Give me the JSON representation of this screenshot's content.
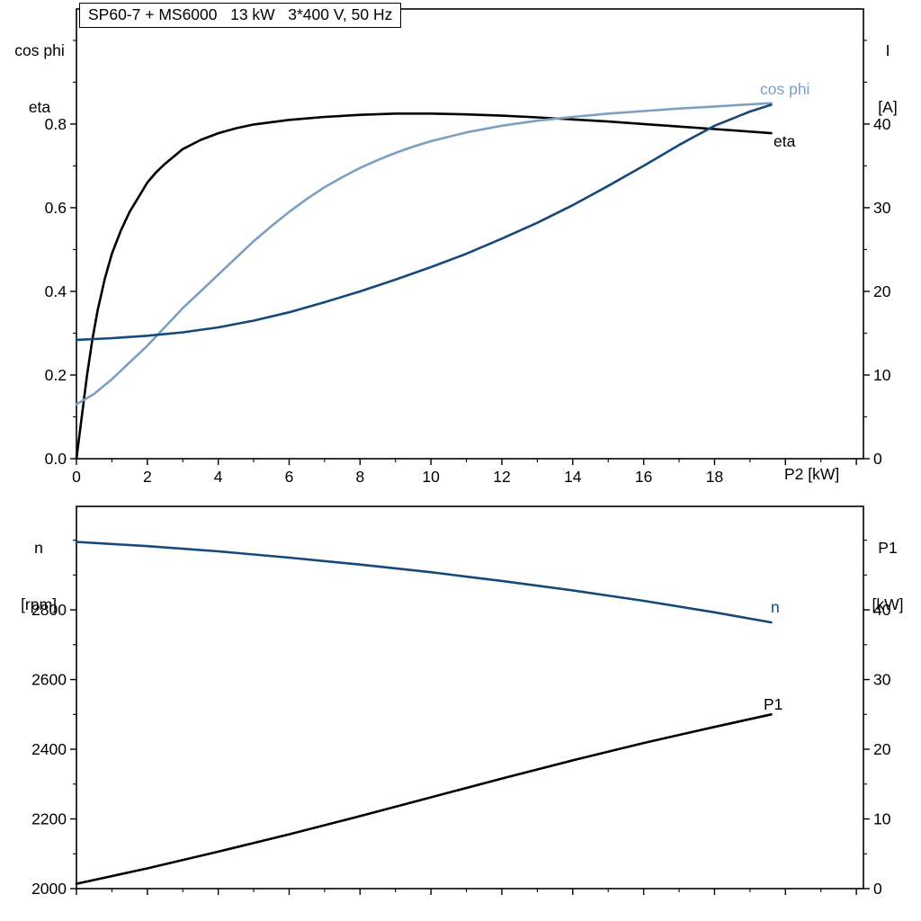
{
  "title": "SP60-7 + MS6000   13 kW   3*400 V, 50 Hz",
  "colors": {
    "black": "#000000",
    "dark_blue": "#15497b",
    "light_blue": "#7d9fc2"
  },
  "top_chart": {
    "y_left_title": [
      "cos phi",
      "eta"
    ],
    "y_right_title": [
      "I",
      "[A]"
    ],
    "x_title": "P2 [kW]",
    "curve_labels": {
      "cos_phi": "cos phi",
      "eta": "eta"
    }
  },
  "bottom_chart": {
    "y_left_title": [
      "n",
      "[rpm]"
    ],
    "y_right_title": [
      "P1",
      "[kW]"
    ],
    "curve_labels": {
      "n": "n",
      "p1": "P1"
    }
  },
  "chart_data": [
    {
      "id": "top",
      "type": "line",
      "title": "SP60-7 + MS6000   13 kW   3*400 V, 50 Hz",
      "xlabel": "P2 [kW]",
      "ylabel_left": "cos phi / eta",
      "ylabel_right": "I [A]",
      "xlim": [
        0,
        22.2
      ],
      "ylim_left": [
        0,
        1.075
      ],
      "ylim_right": [
        0,
        53.75
      ],
      "grid": false,
      "x_ticks": {
        "values": [
          0,
          2,
          4,
          6,
          8,
          10,
          12,
          14,
          16,
          18,
          20,
          22
        ],
        "labels": [
          "0",
          "2",
          "4",
          "6",
          "8",
          "10",
          "12",
          "14",
          "16",
          "18",
          "",
          ""
        ],
        "minor_step": 1
      },
      "y_left_ticks": {
        "values": [
          0,
          0.2,
          0.4,
          0.6,
          0.8
        ],
        "labels": [
          "0.0",
          "0.2",
          "0.4",
          "0.6",
          "0.8"
        ],
        "minor_step": 0.1
      },
      "y_right_ticks": {
        "values": [
          0,
          10,
          20,
          30,
          40
        ],
        "labels": [
          "0",
          "10",
          "20",
          "30",
          "40"
        ],
        "minor_step": 5
      },
      "series": [
        {
          "name": "eta",
          "axis": "left",
          "color": "#000000",
          "points": [
            [
              0,
              0
            ],
            [
              0.15,
              0.1
            ],
            [
              0.3,
              0.2
            ],
            [
              0.45,
              0.285
            ],
            [
              0.6,
              0.355
            ],
            [
              0.8,
              0.43
            ],
            [
              1,
              0.49
            ],
            [
              1.25,
              0.545
            ],
            [
              1.5,
              0.59
            ],
            [
              1.75,
              0.625
            ],
            [
              2,
              0.66
            ],
            [
              2.25,
              0.685
            ],
            [
              2.5,
              0.705
            ],
            [
              3,
              0.74
            ],
            [
              3.5,
              0.762
            ],
            [
              4,
              0.778
            ],
            [
              4.5,
              0.79
            ],
            [
              5,
              0.799
            ],
            [
              6,
              0.81
            ],
            [
              7,
              0.817
            ],
            [
              8,
              0.822
            ],
            [
              9,
              0.825
            ],
            [
              10,
              0.825
            ],
            [
              11,
              0.823
            ],
            [
              12,
              0.82
            ],
            [
              13,
              0.816
            ],
            [
              14,
              0.811
            ],
            [
              15,
              0.806
            ],
            [
              16,
              0.8
            ],
            [
              17,
              0.794
            ],
            [
              18,
              0.788
            ],
            [
              19,
              0.782
            ],
            [
              19.6,
              0.778
            ]
          ]
        },
        {
          "name": "cos phi",
          "axis": "left",
          "color": "#7d9fc2",
          "points": [
            [
              0,
              0.13
            ],
            [
              0.5,
              0.155
            ],
            [
              1,
              0.19
            ],
            [
              1.5,
              0.23
            ],
            [
              2,
              0.27
            ],
            [
              2.5,
              0.315
            ],
            [
              3,
              0.36
            ],
            [
              3.5,
              0.4
            ],
            [
              4,
              0.44
            ],
            [
              4.5,
              0.48
            ],
            [
              5,
              0.52
            ],
            [
              5.5,
              0.556
            ],
            [
              6,
              0.59
            ],
            [
              6.5,
              0.621
            ],
            [
              7,
              0.649
            ],
            [
              7.5,
              0.673
            ],
            [
              8,
              0.695
            ],
            [
              8.5,
              0.714
            ],
            [
              9,
              0.731
            ],
            [
              9.5,
              0.746
            ],
            [
              10,
              0.759
            ],
            [
              11,
              0.78
            ],
            [
              12,
              0.796
            ],
            [
              13,
              0.808
            ],
            [
              14,
              0.817
            ],
            [
              15,
              0.825
            ],
            [
              16,
              0.831
            ],
            [
              17,
              0.837
            ],
            [
              18,
              0.842
            ],
            [
              19,
              0.847
            ],
            [
              19.6,
              0.85
            ]
          ]
        },
        {
          "name": "I",
          "axis": "right",
          "color": "#15497b",
          "points": [
            [
              0,
              14.2
            ],
            [
              1,
              14.4
            ],
            [
              2,
              14.7
            ],
            [
              3,
              15.1
            ],
            [
              4,
              15.7
            ],
            [
              5,
              16.5
            ],
            [
              6,
              17.5
            ],
            [
              7,
              18.7
            ],
            [
              8,
              20.0
            ],
            [
              9,
              21.4
            ],
            [
              10,
              22.9
            ],
            [
              11,
              24.5
            ],
            [
              12,
              26.3
            ],
            [
              13,
              28.2
            ],
            [
              14,
              30.3
            ],
            [
              15,
              32.6
            ],
            [
              16,
              35.0
            ],
            [
              17,
              37.5
            ],
            [
              18,
              39.8
            ],
            [
              19,
              41.5
            ],
            [
              19.6,
              42.3
            ]
          ]
        }
      ]
    },
    {
      "id": "bottom",
      "type": "line",
      "title": "",
      "xlabel": "",
      "ylabel_left": "n [rpm]",
      "ylabel_right": "P1 [kW]",
      "xlim": [
        0,
        22.2
      ],
      "ylim_left": [
        2000,
        3097
      ],
      "ylim_right": [
        0,
        54.85
      ],
      "grid": false,
      "x_ticks": {
        "values": [
          0,
          2,
          4,
          6,
          8,
          10,
          12,
          14,
          16,
          18,
          20,
          22
        ],
        "labels": [
          "",
          "",
          "",
          "",
          "",
          "",
          "",
          "",
          "",
          "",
          "",
          ""
        ],
        "minor_step": 1
      },
      "y_left_ticks": {
        "values": [
          2000,
          2200,
          2400,
          2600,
          2800
        ],
        "labels": [
          "2000",
          "2200",
          "2400",
          "2600",
          "2800"
        ],
        "minor_step": 100
      },
      "y_right_ticks": {
        "values": [
          0,
          10,
          20,
          30,
          40
        ],
        "labels": [
          "0",
          "10",
          "20",
          "30",
          "40"
        ],
        "minor_step": 5
      },
      "series": [
        {
          "name": "n",
          "axis": "left",
          "color": "#15497b",
          "points": [
            [
              0,
              2995
            ],
            [
              2,
              2983
            ],
            [
              4,
              2968
            ],
            [
              6,
              2950
            ],
            [
              8,
              2930
            ],
            [
              10,
              2908
            ],
            [
              12,
              2883
            ],
            [
              14,
              2856
            ],
            [
              16,
              2826
            ],
            [
              18,
              2793
            ],
            [
              19.6,
              2764
            ]
          ]
        },
        {
          "name": "P1",
          "axis": "right",
          "color": "#000000",
          "points": [
            [
              0,
              0.7
            ],
            [
              2,
              2.9
            ],
            [
              4,
              5.3
            ],
            [
              6,
              7.8
            ],
            [
              8,
              10.4
            ],
            [
              10,
              13.1
            ],
            [
              12,
              15.8
            ],
            [
              14,
              18.4
            ],
            [
              16,
              20.9
            ],
            [
              18,
              23.2
            ],
            [
              19.6,
              25.0
            ]
          ]
        }
      ]
    }
  ]
}
